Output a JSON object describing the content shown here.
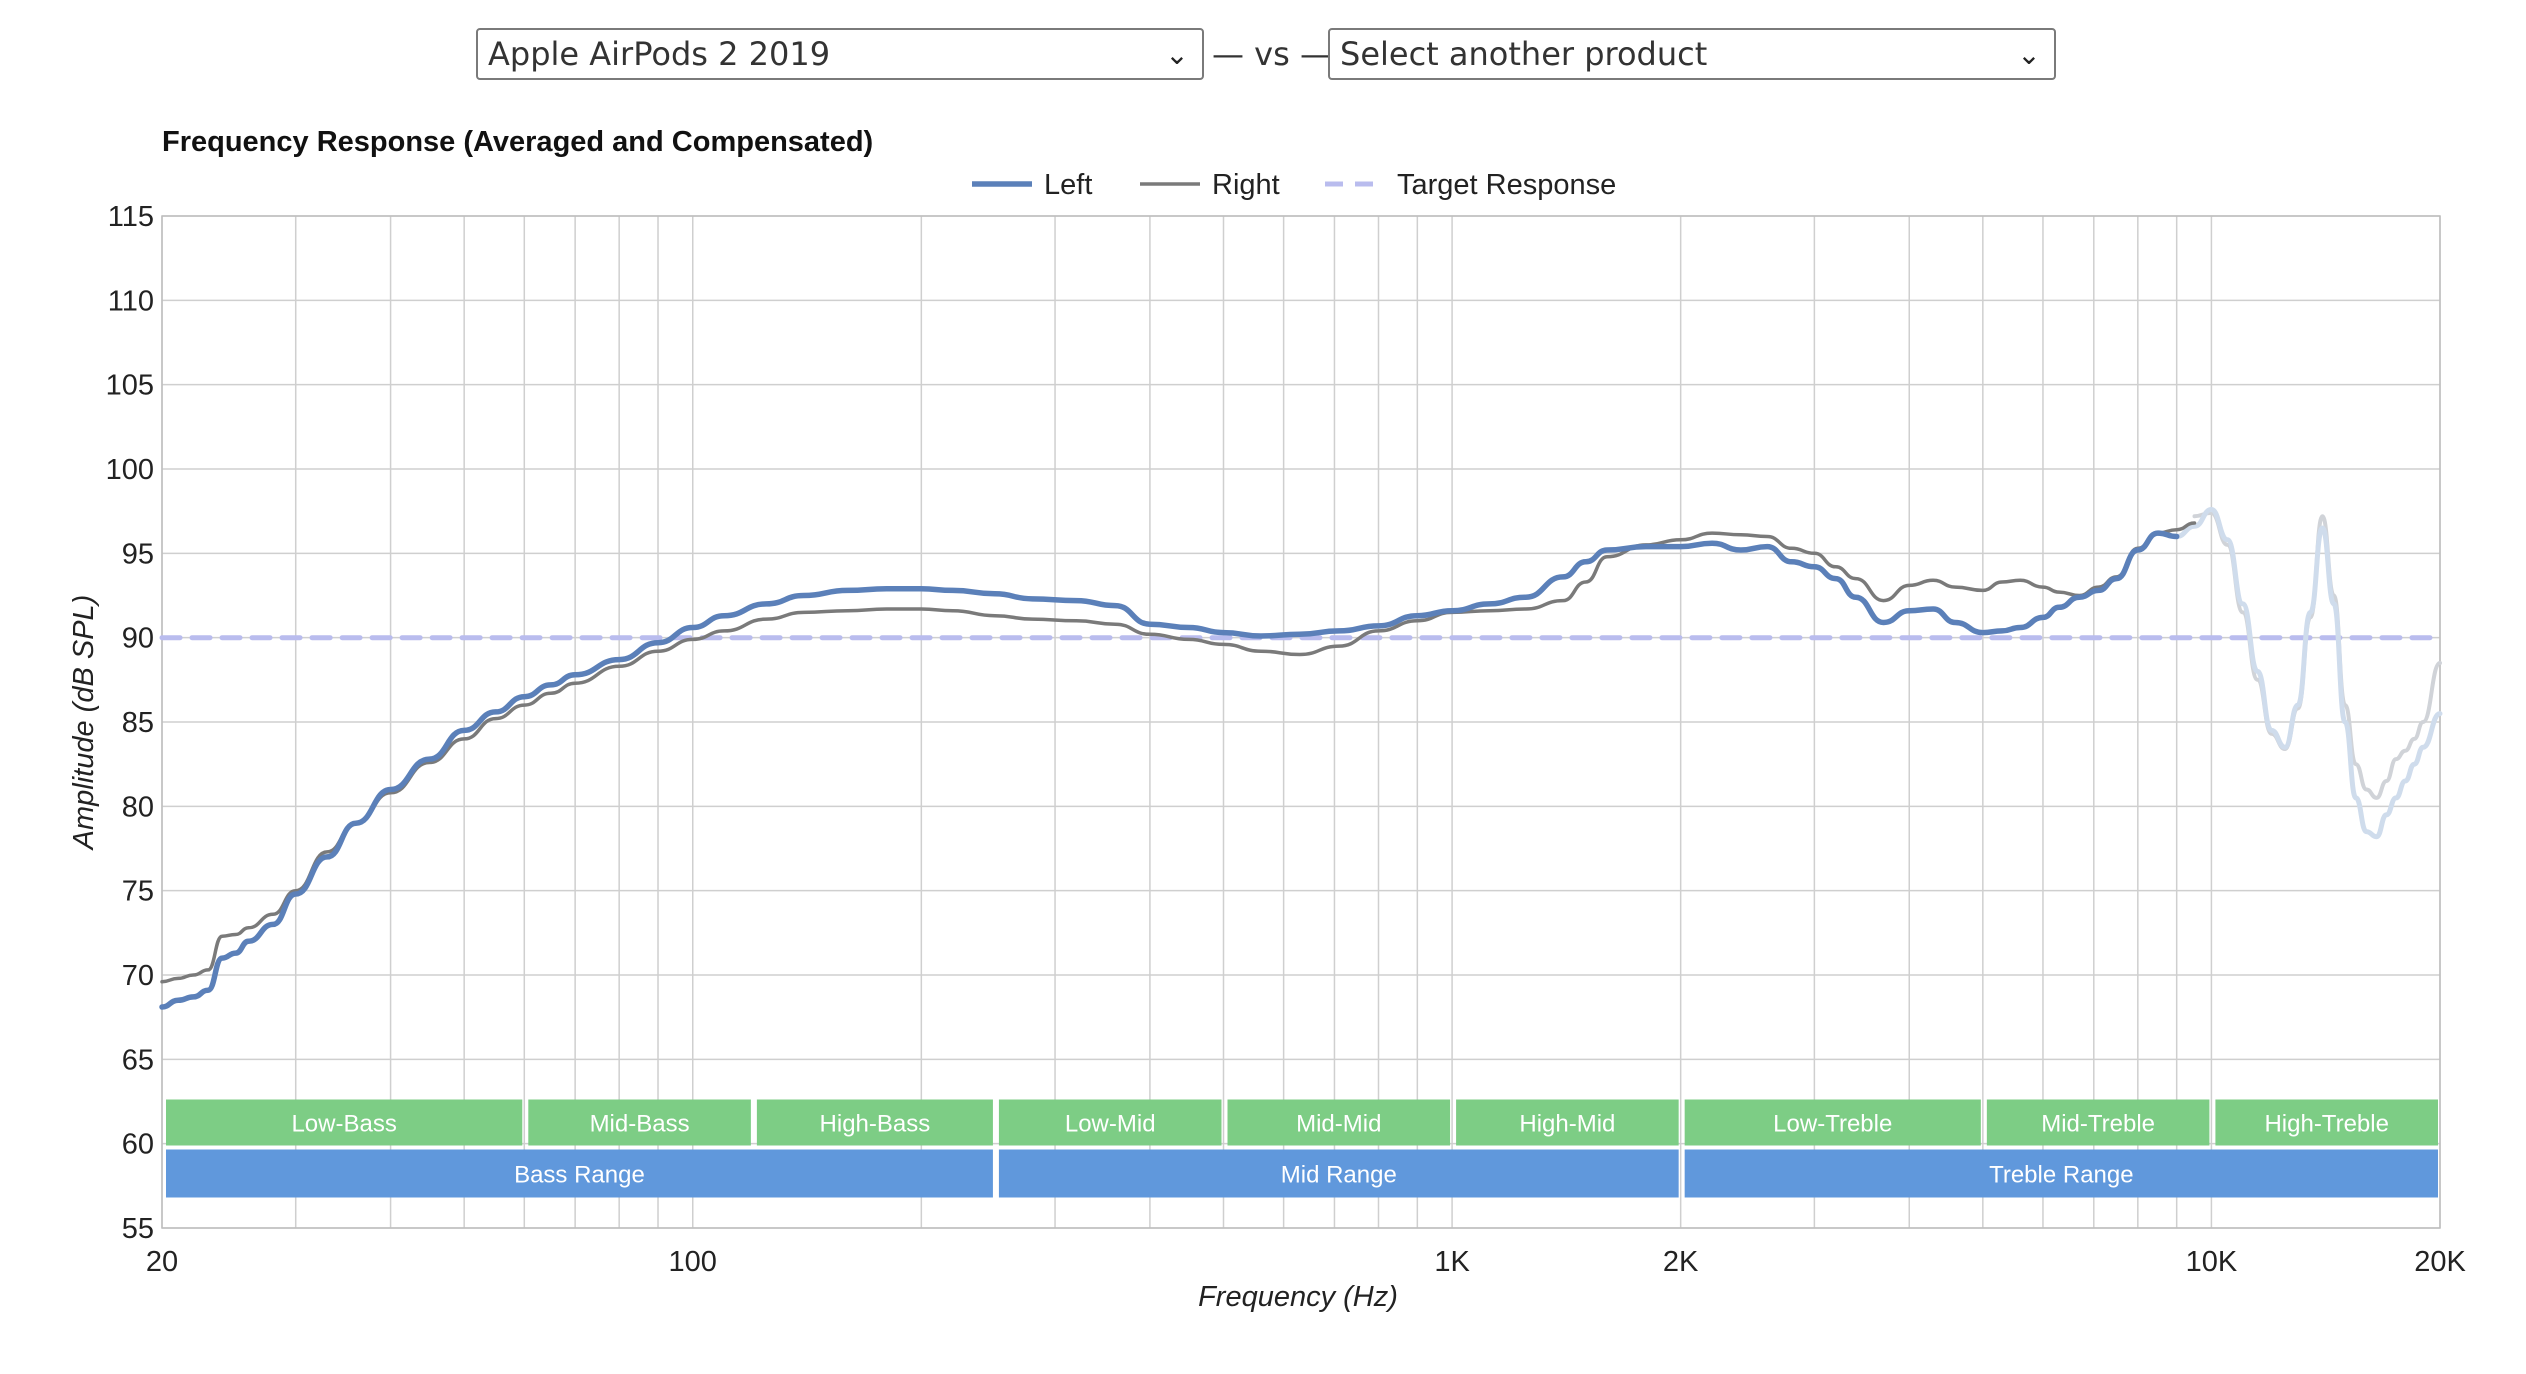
{
  "selector": {
    "product_a": "Apple AirPods 2 2019",
    "separator": "— vs —",
    "product_b": "Select another product"
  },
  "chart_data": {
    "type": "line",
    "title": "Frequency Response (Averaged and Compensated)",
    "xlabel": "Frequency (Hz)",
    "ylabel": "Amplitude (dB SPL)",
    "x_scale": "log",
    "xlim": [
      20,
      20000
    ],
    "ylim": [
      55,
      115
    ],
    "y_ticks": [
      55,
      60,
      65,
      70,
      75,
      80,
      85,
      90,
      95,
      100,
      105,
      110,
      115
    ],
    "x_ticks": [
      {
        "value": 20,
        "label": "20"
      },
      {
        "value": 100,
        "label": "100"
      },
      {
        "value": 1000,
        "label": "1K"
      },
      {
        "value": 2000,
        "label": "2K"
      },
      {
        "value": 10000,
        "label": "10K"
      },
      {
        "value": 20000,
        "label": "20K"
      }
    ],
    "grid": true,
    "legend_position": "top-center",
    "colors": {
      "left": "#5b80b9",
      "right": "#7a7a7a",
      "target": "#b9bcee",
      "band_green": "#7dcd85",
      "band_blue": "#6098dc",
      "grid": "#cfcfcf"
    },
    "series": [
      {
        "name": "Left",
        "key": "left",
        "x": [
          20,
          21,
          22,
          23,
          24,
          25,
          26,
          28,
          30,
          33,
          36,
          40,
          45,
          50,
          55,
          60,
          65,
          70,
          80,
          90,
          100,
          110,
          125,
          140,
          160,
          180,
          200,
          220,
          250,
          280,
          320,
          360,
          400,
          450,
          500,
          560,
          630,
          710,
          800,
          900,
          1000,
          1120,
          1250,
          1400,
          1500,
          1600,
          1800,
          2000,
          2200,
          2400,
          2600,
          2800,
          3000,
          3200,
          3400,
          3700,
          4000,
          4300,
          4600,
          5000,
          5300,
          5600,
          6000,
          6300,
          6700,
          7100,
          7500,
          8000,
          8500,
          9000
        ],
        "y": [
          68.1,
          68.5,
          68.7,
          69.1,
          71.0,
          71.3,
          72.0,
          73.0,
          74.8,
          77.0,
          79.0,
          81.0,
          82.8,
          84.5,
          85.6,
          86.5,
          87.2,
          87.8,
          88.7,
          89.7,
          90.6,
          91.3,
          92.0,
          92.5,
          92.8,
          92.9,
          92.9,
          92.8,
          92.6,
          92.3,
          92.2,
          91.9,
          90.8,
          90.6,
          90.3,
          90.1,
          90.2,
          90.4,
          90.7,
          91.3,
          91.6,
          92.0,
          92.4,
          93.6,
          94.5,
          95.2,
          95.4,
          95.4,
          95.6,
          95.2,
          95.4,
          94.5,
          94.2,
          93.5,
          92.4,
          90.9,
          91.6,
          91.7,
          90.9,
          90.3,
          90.4,
          90.6,
          91.2,
          91.8,
          92.4,
          92.8,
          93.5,
          95.2,
          96.2,
          96.0
        ]
      },
      {
        "name": "Right",
        "key": "right",
        "x": [
          20,
          21,
          22,
          23,
          24,
          25,
          26,
          28,
          30,
          33,
          36,
          40,
          45,
          50,
          55,
          60,
          65,
          70,
          80,
          90,
          100,
          110,
          125,
          140,
          160,
          180,
          200,
          220,
          250,
          280,
          320,
          360,
          400,
          450,
          500,
          560,
          630,
          710,
          800,
          900,
          1000,
          1120,
          1250,
          1400,
          1500,
          1600,
          1800,
          2000,
          2200,
          2400,
          2600,
          2800,
          3000,
          3200,
          3400,
          3700,
          4000,
          4300,
          4600,
          5000,
          5300,
          5600,
          6000,
          6300,
          6700,
          7100,
          7500,
          8000,
          8500,
          9000,
          9500
        ],
        "y": [
          69.6,
          69.8,
          70.0,
          70.3,
          72.3,
          72.4,
          72.8,
          73.6,
          75.0,
          77.3,
          79.0,
          80.8,
          82.6,
          84.0,
          85.2,
          86.0,
          86.7,
          87.3,
          88.3,
          89.2,
          89.9,
          90.4,
          91.1,
          91.5,
          91.6,
          91.7,
          91.7,
          91.6,
          91.3,
          91.1,
          91.0,
          90.8,
          90.2,
          89.9,
          89.6,
          89.2,
          89.0,
          89.5,
          90.4,
          91.0,
          91.5,
          91.6,
          91.7,
          92.2,
          93.3,
          94.8,
          95.5,
          95.8,
          96.2,
          96.1,
          96.0,
          95.3,
          95.0,
          94.2,
          93.5,
          92.2,
          93.1,
          93.4,
          93.0,
          92.8,
          93.3,
          93.4,
          93.0,
          92.7,
          92.5,
          93.0,
          93.6,
          95.3,
          96.2,
          96.4,
          96.8
        ]
      },
      {
        "name": "Left",
        "key": "left_faded",
        "x": [
          9000,
          9500,
          10000,
          10500,
          11000,
          11500,
          12000,
          12500,
          13000,
          13500,
          14000,
          14500,
          15000,
          15500,
          16000,
          16500,
          17000,
          17500,
          18000,
          18500,
          19000,
          20000
        ],
        "y": [
          96.0,
          96.6,
          97.6,
          95.8,
          92.0,
          88.0,
          84.5,
          83.5,
          86.0,
          91.5,
          96.5,
          92.0,
          85.0,
          80.5,
          78.5,
          78.2,
          79.5,
          80.5,
          81.5,
          82.5,
          83.5,
          85.5
        ]
      },
      {
        "name": "Right",
        "key": "right_faded",
        "x": [
          9500,
          10000,
          10500,
          11000,
          11500,
          12000,
          12500,
          13000,
          13500,
          14000,
          14500,
          15000,
          15500,
          16000,
          16500,
          17000,
          17500,
          18000,
          18500,
          19000,
          20000
        ],
        "y": [
          97.2,
          97.4,
          95.5,
          91.5,
          87.5,
          84.3,
          83.4,
          85.8,
          91.2,
          97.2,
          92.5,
          86.0,
          82.5,
          81.0,
          80.5,
          81.5,
          82.8,
          83.3,
          84.0,
          85.0,
          88.5
        ]
      },
      {
        "name": "Target Response",
        "key": "target",
        "x": [
          20,
          20000
        ],
        "y": [
          90,
          90
        ]
      }
    ],
    "range_bands": [
      {
        "label": "Low-Bass",
        "from": 20,
        "to": 60
      },
      {
        "label": "Mid-Bass",
        "from": 60,
        "to": 120
      },
      {
        "label": "High-Bass",
        "from": 120,
        "to": 250
      },
      {
        "label": "Low-Mid",
        "from": 250,
        "to": 500
      },
      {
        "label": "Mid-Mid",
        "from": 500,
        "to": 1000
      },
      {
        "label": "High-Mid",
        "from": 1000,
        "to": 2000
      },
      {
        "label": "Low-Treble",
        "from": 2000,
        "to": 5000
      },
      {
        "label": "Mid-Treble",
        "from": 5000,
        "to": 10000
      },
      {
        "label": "High-Treble",
        "from": 10000,
        "to": 20000
      }
    ],
    "range_groups": [
      {
        "label": "Bass Range",
        "from": 20,
        "to": 250
      },
      {
        "label": "Mid Range",
        "from": 250,
        "to": 2000
      },
      {
        "label": "Treble Range",
        "from": 2000,
        "to": 20000
      }
    ]
  }
}
